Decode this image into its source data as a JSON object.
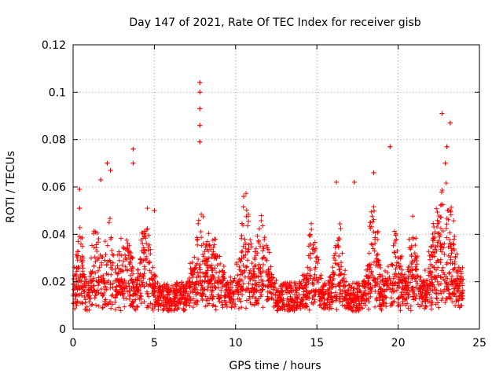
{
  "chart_data": {
    "type": "scatter",
    "title": "Day 147 of 2021, Rate Of TEC Index for receiver gisb",
    "xlabel": "GPS time / hours",
    "ylabel": "ROTI / TECUs",
    "xlim": [
      0,
      25
    ],
    "ylim": [
      0,
      0.12
    ],
    "xticks": [
      0,
      5,
      10,
      15,
      20,
      25
    ],
    "xtick_labels": [
      "0",
      "5",
      "10",
      "15",
      "20",
      "25"
    ],
    "yticks": [
      0,
      0.02,
      0.04,
      0.06,
      0.08,
      0.1,
      0.12
    ],
    "ytick_labels": [
      "0",
      "0.02",
      "0.04",
      "0.06",
      "0.08",
      "0.1",
      "0.12"
    ],
    "grid": true,
    "marker": "+",
    "color": "#ff0000",
    "x_data_range": [
      0,
      24
    ],
    "series": [
      {
        "name": "ROTI",
        "notable_points": [
          {
            "x": 0.4,
            "y": 0.059
          },
          {
            "x": 0.4,
            "y": 0.051
          },
          {
            "x": 1.7,
            "y": 0.063
          },
          {
            "x": 2.1,
            "y": 0.07
          },
          {
            "x": 2.3,
            "y": 0.067
          },
          {
            "x": 3.7,
            "y": 0.076
          },
          {
            "x": 3.7,
            "y": 0.07
          },
          {
            "x": 5.0,
            "y": 0.05
          },
          {
            "x": 7.8,
            "y": 0.104
          },
          {
            "x": 7.8,
            "y": 0.1
          },
          {
            "x": 7.8,
            "y": 0.093
          },
          {
            "x": 7.8,
            "y": 0.086
          },
          {
            "x": 7.8,
            "y": 0.079
          },
          {
            "x": 10.5,
            "y": 0.056
          },
          {
            "x": 16.2,
            "y": 0.062
          },
          {
            "x": 17.3,
            "y": 0.062
          },
          {
            "x": 18.5,
            "y": 0.066
          },
          {
            "x": 19.5,
            "y": 0.077
          },
          {
            "x": 22.7,
            "y": 0.091
          },
          {
            "x": 23.2,
            "y": 0.087
          },
          {
            "x": 23.0,
            "y": 0.077
          },
          {
            "x": 22.9,
            "y": 0.07
          }
        ],
        "bursts": [
          {
            "center": 0.4,
            "width": 0.4,
            "peak": 0.04
          },
          {
            "center": 1.5,
            "width": 0.6,
            "peak": 0.046
          },
          {
            "center": 2.2,
            "width": 0.4,
            "peak": 0.05
          },
          {
            "center": 3.2,
            "width": 0.8,
            "peak": 0.04
          },
          {
            "center": 4.5,
            "width": 0.6,
            "peak": 0.048
          },
          {
            "center": 7.8,
            "width": 0.7,
            "peak": 0.048
          },
          {
            "center": 8.5,
            "width": 1.4,
            "peak": 0.036
          },
          {
            "center": 10.6,
            "width": 0.7,
            "peak": 0.052
          },
          {
            "center": 11.6,
            "width": 0.8,
            "peak": 0.043
          },
          {
            "center": 14.7,
            "width": 0.6,
            "peak": 0.047
          },
          {
            "center": 16.3,
            "width": 0.5,
            "peak": 0.044
          },
          {
            "center": 18.5,
            "width": 0.5,
            "peak": 0.058
          },
          {
            "center": 19.8,
            "width": 0.8,
            "peak": 0.038
          },
          {
            "center": 20.9,
            "width": 0.5,
            "peak": 0.046
          },
          {
            "center": 22.8,
            "width": 1.2,
            "peak": 0.06
          }
        ],
        "baseline_mean": 0.013,
        "baseline_spread": 0.006
      }
    ]
  }
}
